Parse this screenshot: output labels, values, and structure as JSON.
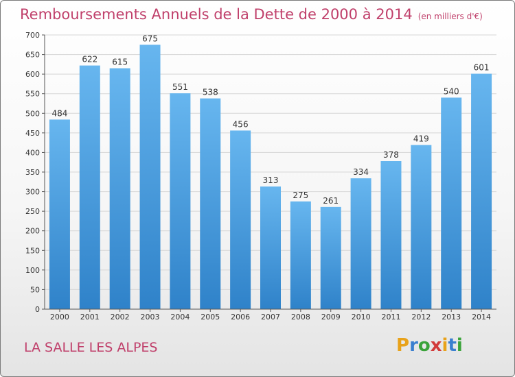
{
  "title": "Remboursements Annuels de la Dette de 2000 à 2014",
  "unit": "(en milliers d'€)",
  "commune": "LA SALLE LES ALPES",
  "logo": {
    "letters": [
      "P",
      "r",
      "o",
      "x",
      "i",
      "t",
      "i"
    ],
    "colors": [
      "#e8a21a",
      "#3a7fd0",
      "#3aa33a",
      "#d23a3a",
      "#e8a21a",
      "#3a7fd0",
      "#3aa33a"
    ]
  },
  "colors": {
    "title": "#c0406b",
    "bar_top": "#67b6ef",
    "bar_bottom": "#2f82c9"
  },
  "chart_data": {
    "type": "bar",
    "categories": [
      "2000",
      "2001",
      "2002",
      "2003",
      "2004",
      "2005",
      "2006",
      "2007",
      "2008",
      "2009",
      "2010",
      "2011",
      "2012",
      "2013",
      "2014"
    ],
    "values": [
      484,
      622,
      615,
      675,
      551,
      538,
      456,
      313,
      275,
      261,
      334,
      378,
      419,
      540,
      601
    ],
    "value_labels": [
      "484",
      "622",
      "615",
      "675",
      "551",
      "538",
      "456",
      "313",
      "275",
      "261",
      "334",
      "378",
      "419",
      "540",
      "601"
    ],
    "ylim": [
      0,
      700
    ],
    "yticks": [
      "0",
      "50",
      "100",
      "150",
      "200",
      "250",
      "300",
      "350",
      "400",
      "450",
      "500",
      "550",
      "600",
      "650",
      "700"
    ],
    "grid": true,
    "legend": "none"
  }
}
